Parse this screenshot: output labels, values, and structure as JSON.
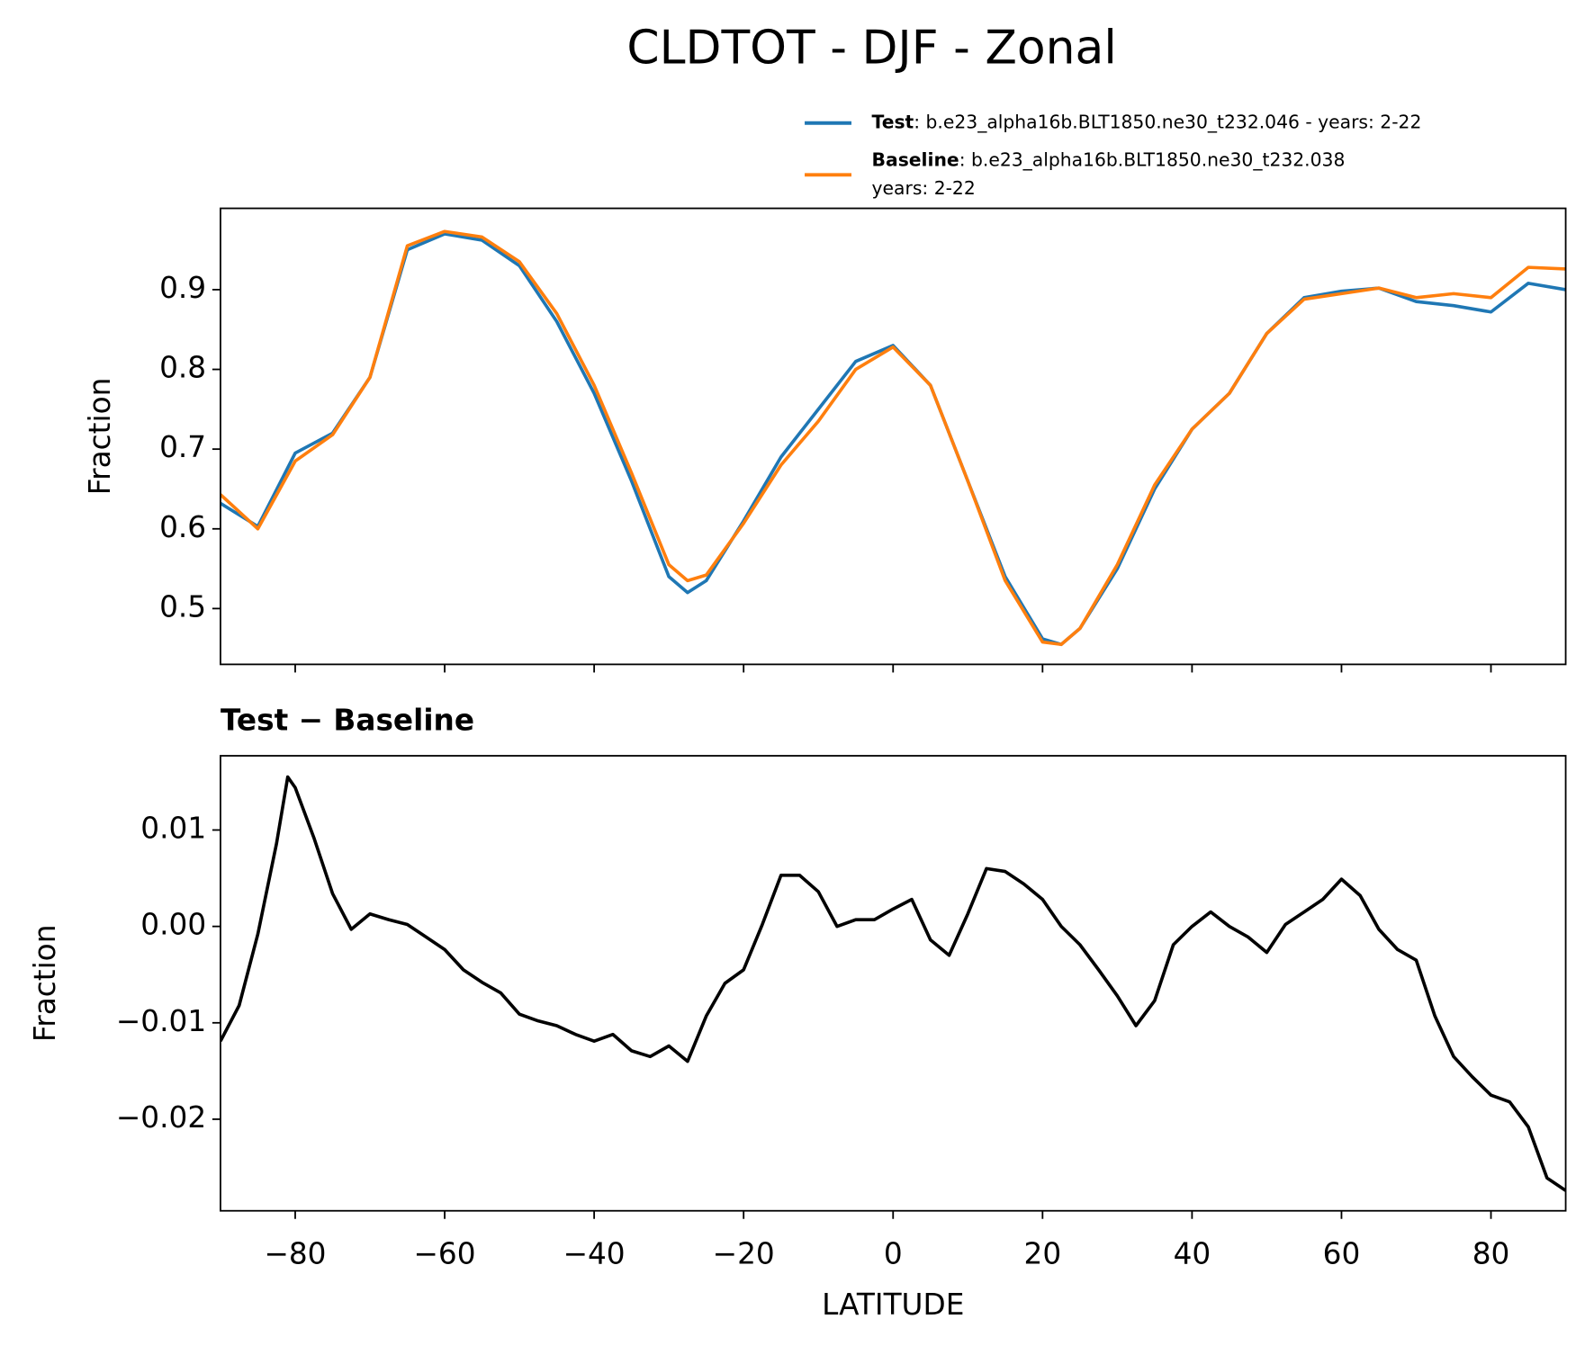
{
  "title": "CLDTOT - DJF - Zonal",
  "chart_data": [
    {
      "type": "line",
      "ylabel": "Fraction",
      "x": [
        -90,
        -85,
        -80,
        -75,
        -70,
        -65,
        -60,
        -55,
        -50,
        -45,
        -40,
        -35,
        -30,
        -27.5,
        -25,
        -20,
        -15,
        -10,
        -5,
        0,
        5,
        10,
        15,
        20,
        22.5,
        25,
        30,
        35,
        40,
        45,
        50,
        55,
        60,
        65,
        70,
        75,
        80,
        85,
        90
      ],
      "series": [
        {
          "name": "Test",
          "legend_lines": [
            ": b.e23_alpha16b.BLT1850.ne30_t232.046 - years: 2-22"
          ],
          "color": "#1f77b4",
          "values": [
            0.632,
            0.603,
            0.695,
            0.72,
            0.79,
            0.95,
            0.97,
            0.962,
            0.93,
            0.86,
            0.77,
            0.66,
            0.54,
            0.52,
            0.535,
            0.61,
            0.69,
            0.75,
            0.81,
            0.83,
            0.78,
            0.66,
            0.54,
            0.462,
            0.455,
            0.475,
            0.55,
            0.65,
            0.725,
            0.77,
            0.845,
            0.89,
            0.898,
            0.902,
            0.885,
            0.88,
            0.872,
            0.908,
            0.9
          ]
        },
        {
          "name": "Baseline",
          "legend_lines": [
            ": b.e23_alpha16b.BLT1850.ne30_t232.038",
            "years: 2-22"
          ],
          "color": "#ff7f0e",
          "values": [
            0.643,
            0.6,
            0.685,
            0.718,
            0.79,
            0.955,
            0.973,
            0.966,
            0.935,
            0.87,
            0.78,
            0.67,
            0.555,
            0.535,
            0.542,
            0.607,
            0.68,
            0.735,
            0.8,
            0.828,
            0.78,
            0.66,
            0.535,
            0.458,
            0.455,
            0.475,
            0.555,
            0.655,
            0.725,
            0.77,
            0.845,
            0.888,
            0.895,
            0.902,
            0.89,
            0.895,
            0.89,
            0.928,
            0.926
          ]
        }
      ],
      "xlim": [
        -90,
        90
      ],
      "xticks": [
        -80,
        -60,
        -40,
        -20,
        0,
        20,
        40,
        60,
        80
      ],
      "ylim": [
        0.43,
        1.002
      ],
      "yticks": [
        0.5,
        0.6,
        0.7,
        0.8,
        0.9
      ]
    },
    {
      "type": "line",
      "title": "Test − Baseline",
      "ylabel": "Fraction",
      "xlabel": "LATITUDE",
      "x": [
        -90,
        -87.5,
        -85,
        -82.5,
        -81,
        -80,
        -77.5,
        -75,
        -72.5,
        -70,
        -67.5,
        -65,
        -62.5,
        -60,
        -57.5,
        -55,
        -52.5,
        -50,
        -47.5,
        -45,
        -42.5,
        -40,
        -37.5,
        -35,
        -32.5,
        -30,
        -27.5,
        -25,
        -22.5,
        -20,
        -17.5,
        -15,
        -12.5,
        -10,
        -7.5,
        -5,
        -2.5,
        0,
        2.5,
        5,
        7.5,
        10,
        12.5,
        15,
        17.5,
        20,
        22.5,
        25,
        27.5,
        30,
        32.5,
        35,
        37.5,
        40,
        42.5,
        45,
        47.5,
        50,
        52.5,
        55,
        57.5,
        60,
        62.5,
        65,
        67.5,
        70,
        72.5,
        75,
        77.5,
        80,
        82.5,
        85,
        87.5,
        90
      ],
      "series": [
        {
          "color": "#000000",
          "values": [
            -0.0119,
            -0.0082,
            -0.0008,
            0.0086,
            0.0155,
            0.0144,
            0.0092,
            0.0034,
            -0.0003,
            0.0013,
            0.0007,
            0.0002,
            -0.0011,
            -0.0024,
            -0.0045,
            -0.0058,
            -0.0069,
            -0.0091,
            -0.0098,
            -0.0103,
            -0.0112,
            -0.0119,
            -0.0112,
            -0.0129,
            -0.0135,
            -0.0124,
            -0.014,
            -0.0093,
            -0.0059,
            -0.0045,
            0.0002,
            0.0053,
            0.0053,
            0.0036,
            0,
            0.0007,
            0.0007,
            0.0018,
            0.0028,
            -0.0014,
            -0.003,
            0.0013,
            0.006,
            0.0057,
            0.0044,
            0.0028,
            0,
            -0.0019,
            -0.0045,
            -0.0072,
            -0.0103,
            -0.0077,
            -0.0019,
            0,
            0.0015,
            0,
            -0.0011,
            -0.0027,
            0.0002,
            0.0015,
            0.0028,
            0.0049,
            0.0032,
            -0.0003,
            -0.0024,
            -0.0035,
            -0.0093,
            -0.0135,
            -0.0156,
            -0.0175,
            -0.0182,
            -0.0208,
            -0.0261,
            -0.0274
          ]
        }
      ],
      "xlim": [
        -90,
        90
      ],
      "xticks": [
        {
          "value": -80,
          "label": "−80"
        },
        {
          "value": -60,
          "label": "−60"
        },
        {
          "value": -40,
          "label": "−40"
        },
        {
          "value": -20,
          "label": "−20"
        },
        0,
        20,
        40,
        60,
        80
      ],
      "ylim": [
        -0.0295,
        0.0177
      ],
      "yticks": [
        {
          "value": -0.02,
          "label": "−0.02"
        },
        {
          "value": -0.01,
          "label": "−0.01"
        },
        {
          "value": 0,
          "label": "0.00"
        },
        0.01
      ]
    }
  ]
}
